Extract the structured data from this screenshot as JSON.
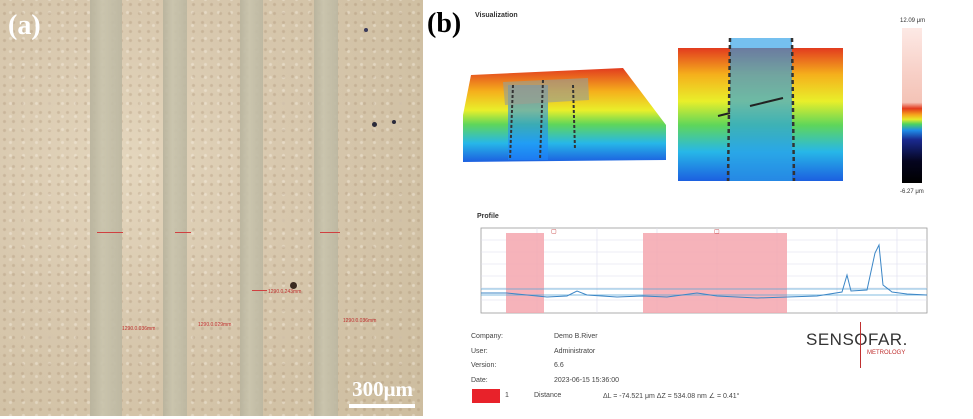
{
  "panel_a": {
    "label": "(a)",
    "scale_bar": "300μm",
    "measurements": [
      "1290.0.036mm",
      "1290.0.029mm",
      "1290.0.243mm",
      "1290.0.036mm"
    ]
  },
  "panel_b": {
    "label": "(b)",
    "visualization_title": "Visualization",
    "colorbar_max": "12.09 μm",
    "colorbar_min": "-6.27 μm",
    "profile_title": "Profile",
    "info": {
      "company_label": "Company:",
      "company_value": "Demo B.River",
      "user_label": "User:",
      "user_value": "Administrator",
      "version_label": "Version:",
      "version_value": "6.6",
      "date_label": "Date:",
      "date_value": "2023-06-15 15:36:00"
    },
    "logo_main": "SENSOFAR.",
    "logo_sub": "METROLOGY",
    "legend_index": "1",
    "legend_name": "Distance",
    "legend_values": "ΔL = -74.521 μm ΔZ = 534.08 nm ∠ = 0.41°",
    "marker_color": "#e8222a"
  }
}
